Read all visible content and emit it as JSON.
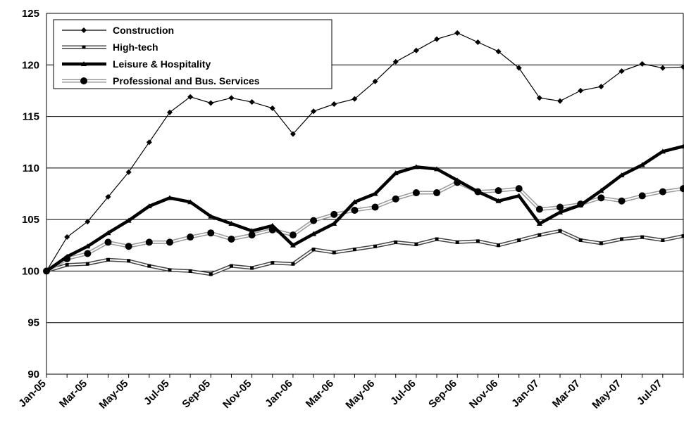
{
  "chart_data": {
    "type": "line",
    "title": "",
    "xlabel": "",
    "ylabel": "",
    "ylim": [
      90,
      125
    ],
    "yticks": [
      "90",
      "95",
      "100",
      "105",
      "110",
      "115",
      "120",
      "125"
    ],
    "grid": "horizontal",
    "legend_position": "top-left",
    "x": [
      "Jan-05",
      "Feb-05",
      "Mar-05",
      "Apr-05",
      "May-05",
      "Jun-05",
      "Jul-05",
      "Aug-05",
      "Sep-05",
      "Oct-05",
      "Nov-05",
      "Dec-05",
      "Jan-06",
      "Feb-06",
      "Mar-06",
      "Apr-06",
      "May-06",
      "Jun-06",
      "Jul-06",
      "Aug-06",
      "Sep-06",
      "Oct-06",
      "Nov-06",
      "Dec-06",
      "Jan-07",
      "Feb-07",
      "Mar-07",
      "Apr-07",
      "May-07",
      "Jun-07",
      "Jul-07",
      "Aug-07"
    ],
    "x_tick_labels": [
      "Jan-05",
      "Mar-05",
      "May-05",
      "Jul-05",
      "Sep-05",
      "Nov-05",
      "Jan-06",
      "Mar-06",
      "May-06",
      "Jul-06",
      "Sep-06",
      "Nov-06",
      "Jan-07",
      "Mar-07",
      "May-07",
      "Jul-07"
    ],
    "series": [
      {
        "name": "Construction",
        "color": "#000000",
        "style": "thin-line-diamond",
        "values": [
          100,
          103.3,
          104.8,
          107.2,
          109.6,
          112.5,
          115.4,
          116.9,
          116.3,
          116.8,
          116.4,
          115.8,
          113.3,
          115.5,
          116.2,
          116.7,
          118.4,
          120.3,
          121.4,
          122.5,
          123.1,
          122.2,
          121.3,
          119.7,
          116.8,
          116.5,
          117.5,
          117.9,
          119.4,
          120.1,
          119.7,
          119.8
        ]
      },
      {
        "name": "High-tech",
        "color": "#555555",
        "style": "double-line-square",
        "values": [
          100,
          100.6,
          100.7,
          101.1,
          101.0,
          100.5,
          100.1,
          100.0,
          99.7,
          100.5,
          100.3,
          100.8,
          100.7,
          102.1,
          101.8,
          102.1,
          102.4,
          102.8,
          102.6,
          103.1,
          102.8,
          102.9,
          102.5,
          103.0,
          103.5,
          103.9,
          103.0,
          102.7,
          103.1,
          103.3,
          103.0,
          103.4
        ]
      },
      {
        "name": "Leisure & Hospitality",
        "color": "#000000",
        "style": "thick-line-triangle",
        "values": [
          100,
          101.4,
          102.4,
          103.7,
          104.9,
          106.3,
          107.1,
          106.7,
          105.3,
          104.6,
          103.9,
          104.4,
          102.5,
          103.6,
          104.6,
          106.7,
          107.5,
          109.5,
          110.1,
          109.9,
          108.8,
          107.7,
          106.8,
          107.3,
          104.6,
          105.7,
          106.4,
          107.8,
          109.3,
          110.3,
          111.6,
          112.1
        ]
      },
      {
        "name": "Professional and Bus. Services",
        "color": "#aaaaaa",
        "style": "gray-line-circle",
        "values": [
          100,
          101.2,
          101.7,
          102.8,
          102.4,
          102.8,
          102.8,
          103.3,
          103.7,
          103.1,
          103.5,
          104.0,
          103.5,
          104.9,
          105.5,
          105.9,
          106.2,
          107.0,
          107.6,
          107.6,
          108.6,
          107.7,
          107.8,
          108.0,
          106.0,
          106.2,
          106.5,
          107.1,
          106.8,
          107.3,
          107.7,
          108.0
        ]
      }
    ]
  }
}
